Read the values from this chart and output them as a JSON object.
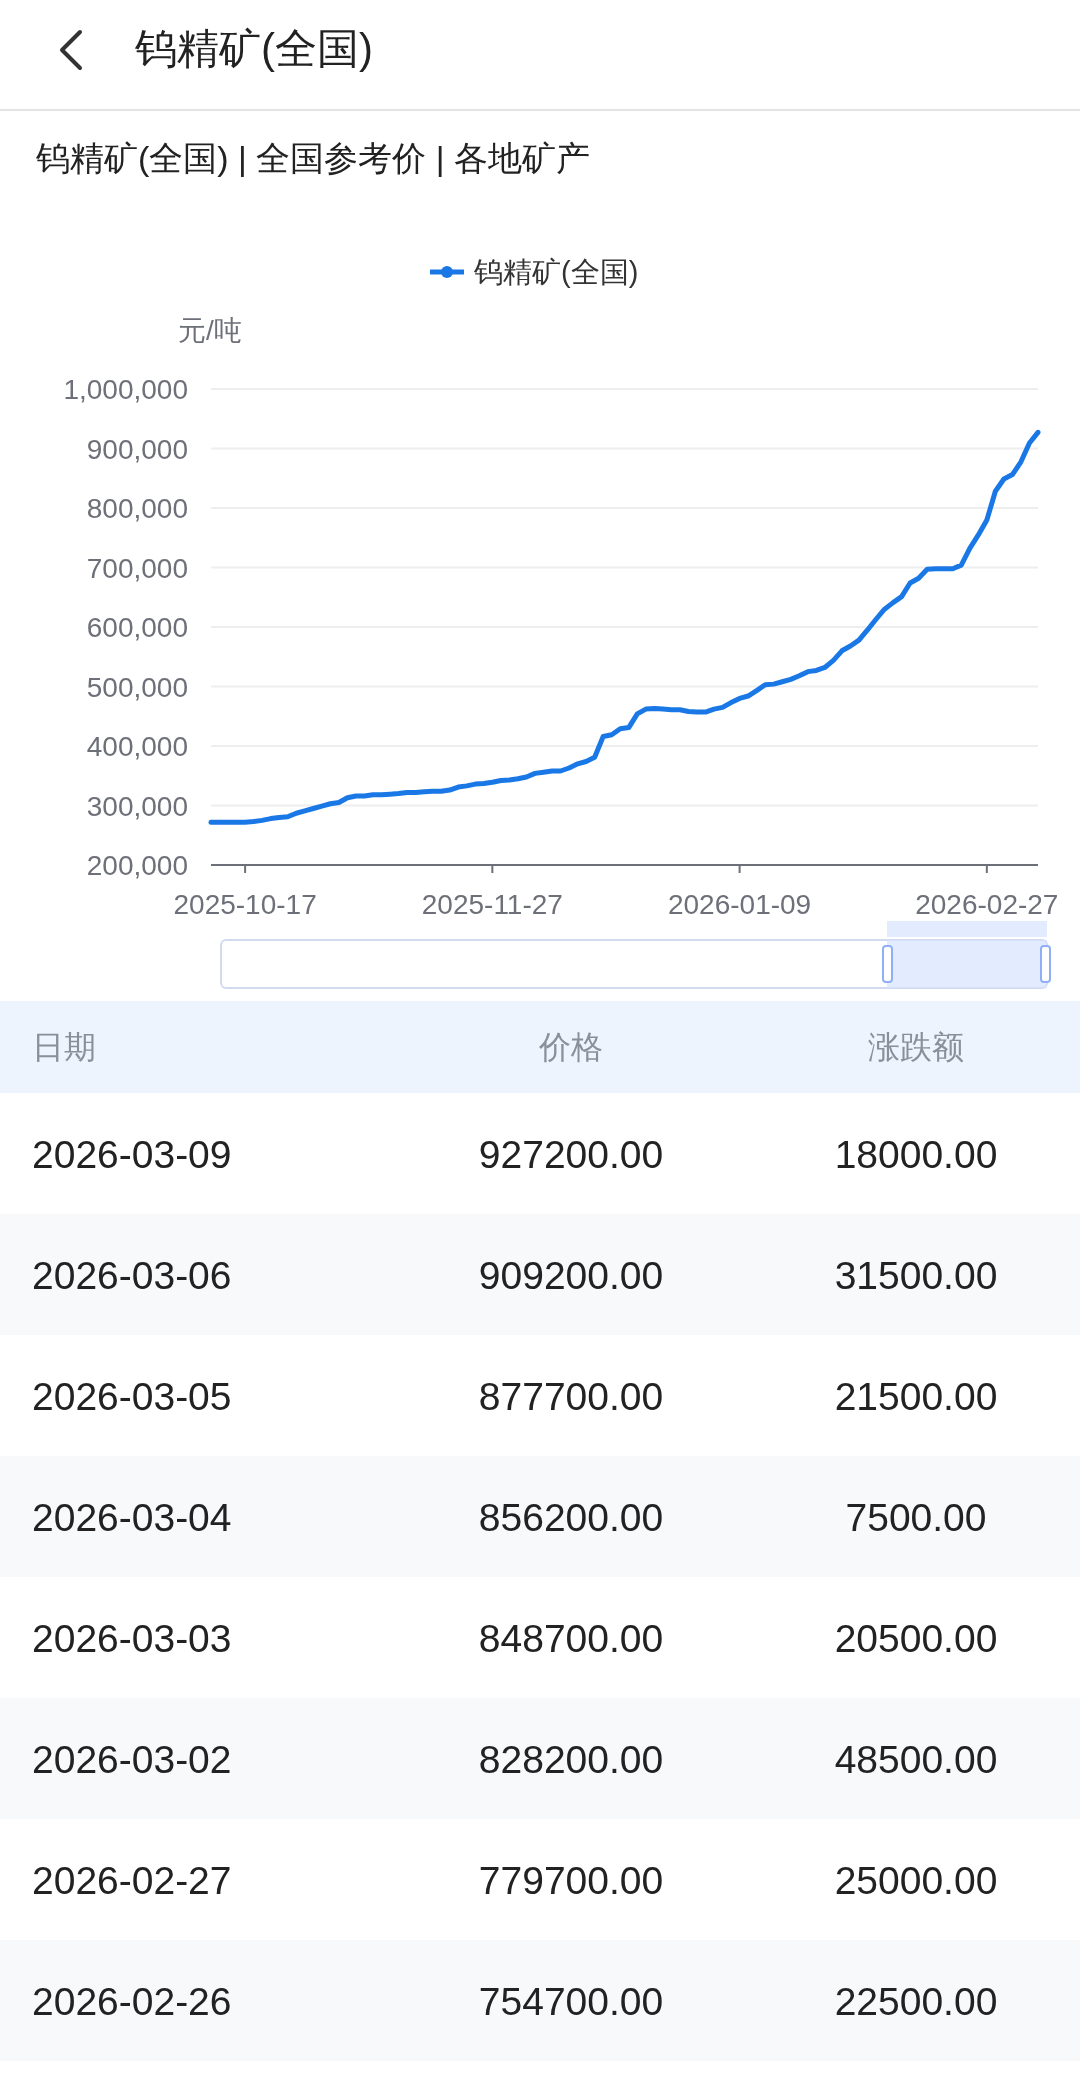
{
  "chart_data": {
    "type": "line",
    "title": "钨精矿(全国)",
    "subtitle": "钨精矿(全国) | 全国参考价 | 各地矿产",
    "ylabel": "元/吨",
    "categories": [
      null,
      null,
      null,
      null,
      "2025-10-17",
      null,
      null,
      null,
      null,
      null,
      null,
      null,
      null,
      null,
      null,
      null,
      null,
      null,
      null,
      null,
      null,
      null,
      null,
      null,
      null,
      null,
      null,
      null,
      null,
      null,
      null,
      null,
      null,
      "2025-11-27",
      null,
      null,
      null,
      null,
      null,
      null,
      null,
      null,
      null,
      null,
      null,
      null,
      null,
      null,
      null,
      null,
      null,
      null,
      null,
      null,
      null,
      null,
      null,
      null,
      null,
      null,
      null,
      null,
      "2026-01-09",
      null,
      null,
      null,
      null,
      null,
      null,
      null,
      null,
      null,
      null,
      null,
      null,
      null,
      null,
      null,
      null,
      null,
      null,
      null,
      null,
      null,
      null,
      null,
      null,
      null,
      null,
      null,
      null,
      "2026-02-27",
      null,
      null,
      null,
      null,
      null,
      null
    ],
    "series": [
      {
        "name": "钨精矿(全国)",
        "color": "#1a78e6",
        "values": [
          272000,
          272000,
          272000,
          272000,
          272000,
          273000,
          275000,
          278000,
          280000,
          281000,
          287000,
          291000,
          295000,
          299000,
          303000,
          305000,
          313000,
          316000,
          316000,
          318000,
          318000,
          319000,
          320000,
          322000,
          322000,
          323000,
          324000,
          324000,
          326000,
          331000,
          333000,
          336000,
          337000,
          339000,
          342000,
          343000,
          345000,
          348000,
          354000,
          356000,
          358000,
          358000,
          363000,
          370000,
          374000,
          381000,
          416000,
          419000,
          429000,
          431000,
          454000,
          462000,
          463000,
          462000,
          461000,
          461000,
          458000,
          457000,
          457000,
          462000,
          465000,
          473000,
          480000,
          484000,
          493000,
          503000,
          504000,
          508000,
          512000,
          518000,
          525000,
          527000,
          532000,
          544000,
          560000,
          568000,
          578000,
          595000,
          613000,
          630000,
          641000,
          651000,
          674000,
          682000,
          697000,
          698000,
          698000,
          698000,
          704000,
          732200,
          754700,
          779700,
          828200,
          848700,
          856200,
          877700,
          909200,
          927200
        ]
      }
    ],
    "ylim": [
      200000,
      1000000
    ],
    "yticks": [
      {
        "value": 200000,
        "label": "200,000"
      },
      {
        "value": 300000,
        "label": "300,000"
      },
      {
        "value": 400000,
        "label": "400,000"
      },
      {
        "value": 500000,
        "label": "500,000"
      },
      {
        "value": 600000,
        "label": "600,000"
      },
      {
        "value": 700000,
        "label": "700,000"
      },
      {
        "value": 800000,
        "label": "800,000"
      },
      {
        "value": 900000,
        "label": "900,000"
      },
      {
        "value": 1000000,
        "label": "1,000,000"
      }
    ],
    "grid": "y",
    "legend": "top",
    "annotations": [
      "日期",
      "价格",
      "涨跌额",
      "2026-03-09",
      "927200.00",
      "18000.00",
      "2026-03-06",
      "909200.00",
      "31500.00",
      "2026-03-05",
      "877700.00",
      "21500.00",
      "2026-03-04",
      "856200.00",
      "7500.00",
      "2026-03-03",
      "848700.00",
      "20500.00",
      "2026-03-02",
      "828200.00",
      "48500.00",
      "2026-02-27",
      "779700.00",
      "25000.00",
      "2026-02-26",
      "754700.00",
      "22500.00"
    ]
  }
}
